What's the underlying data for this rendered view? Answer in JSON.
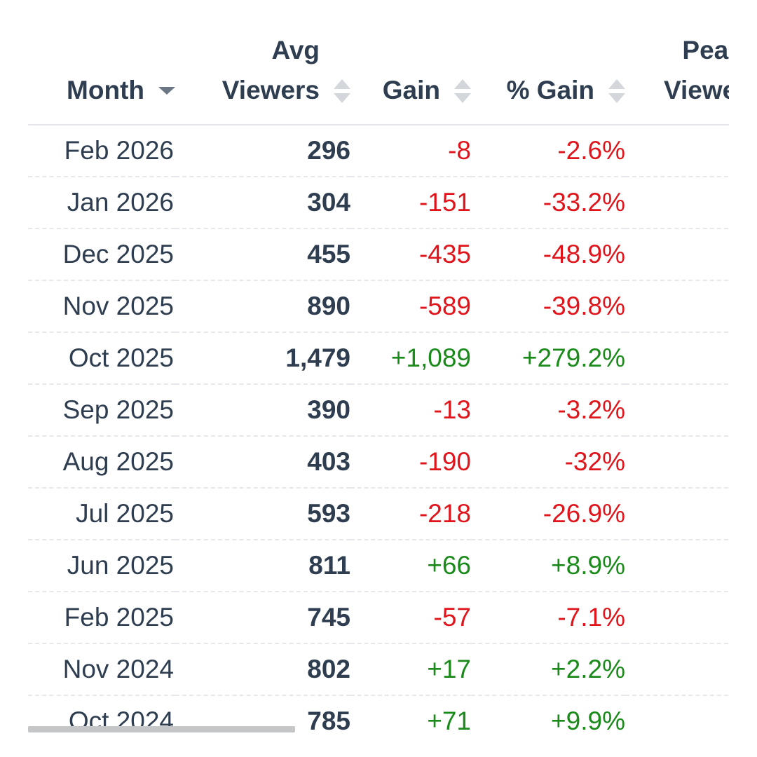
{
  "table": {
    "headers": {
      "month": "Month",
      "avg_line1": "Avg",
      "avg_line2": "Viewers",
      "gain": "Gain",
      "pct_gain": "% Gain",
      "peak_line1": "Peak",
      "peak_line2": "Viewers"
    },
    "rows": [
      {
        "month": "Feb 2026",
        "avg": "296",
        "gain": "-8",
        "pct": "-2.6%",
        "trend": "neg"
      },
      {
        "month": "Jan 2026",
        "avg": "304",
        "gain": "-151",
        "pct": "-33.2%",
        "trend": "neg"
      },
      {
        "month": "Dec 2025",
        "avg": "455",
        "gain": "-435",
        "pct": "-48.9%",
        "trend": "neg"
      },
      {
        "month": "Nov 2025",
        "avg": "890",
        "gain": "-589",
        "pct": "-39.8%",
        "trend": "neg"
      },
      {
        "month": "Oct 2025",
        "avg": "1,479",
        "gain": "+1,089",
        "pct": "+279.2%",
        "trend": "pos"
      },
      {
        "month": "Sep 2025",
        "avg": "390",
        "gain": "-13",
        "pct": "-3.2%",
        "trend": "neg"
      },
      {
        "month": "Aug 2025",
        "avg": "403",
        "gain": "-190",
        "pct": "-32%",
        "trend": "neg"
      },
      {
        "month": "Jul 2025",
        "avg": "593",
        "gain": "-218",
        "pct": "-26.9%",
        "trend": "neg"
      },
      {
        "month": "Jun 2025",
        "avg": "811",
        "gain": "+66",
        "pct": "+8.9%",
        "trend": "pos"
      },
      {
        "month": "Feb 2025",
        "avg": "745",
        "gain": "-57",
        "pct": "-7.1%",
        "trend": "neg"
      },
      {
        "month": "Nov 2024",
        "avg": "802",
        "gain": "+17",
        "pct": "+2.2%",
        "trend": "pos"
      },
      {
        "month": "Oct 2024",
        "avg": "785",
        "gain": "+71",
        "pct": "+9.9%",
        "trend": "pos"
      }
    ]
  },
  "colors": {
    "positive": "#1a8a1a",
    "negative": "#e0141b",
    "text": "#2e3d4f"
  }
}
